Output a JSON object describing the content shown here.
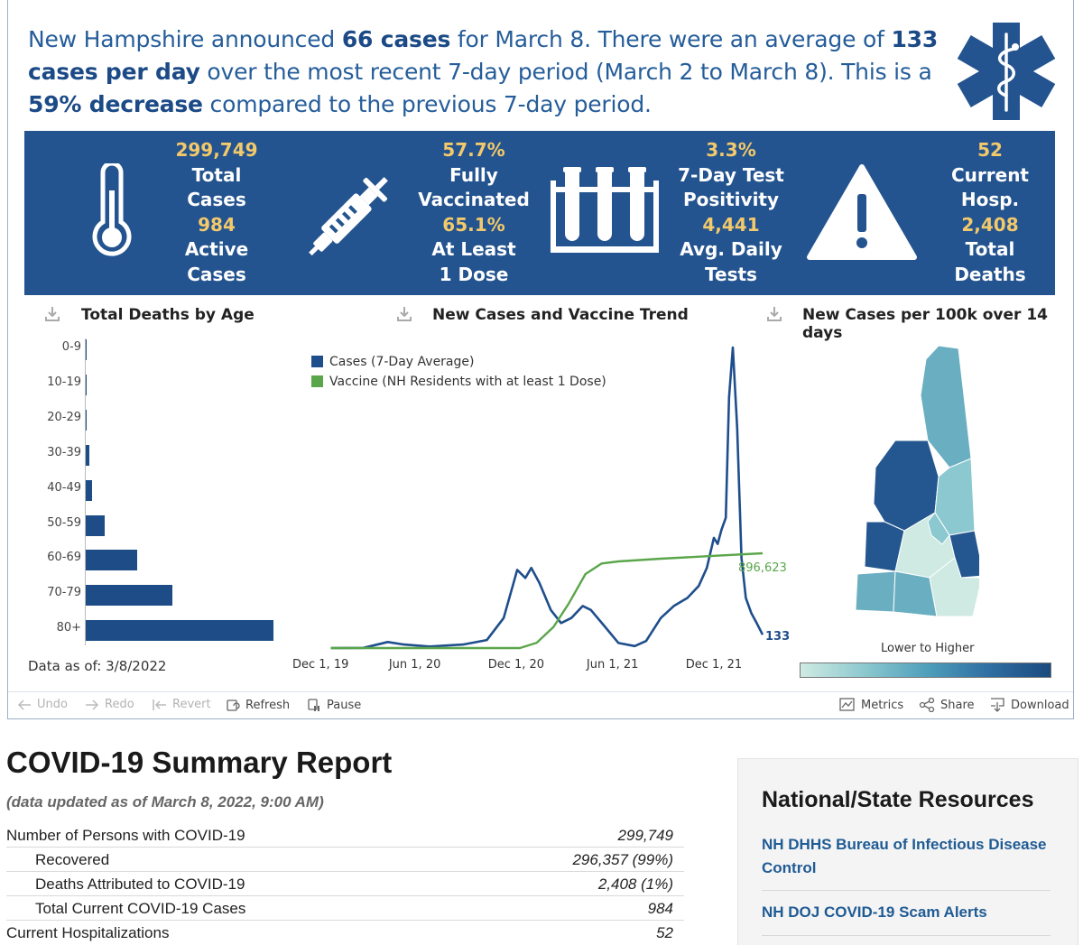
{
  "headline": {
    "p1": "New Hampshire announced ",
    "b1": "66 cases",
    "p2": " for March 8. There were an average of ",
    "b2": "133 cases per day",
    "p3": " over the most recent 7-day period (March 2 to March 8). This is a ",
    "b3": "59% decrease",
    "p4": " compared to the previous 7-day period."
  },
  "logo_icon": "star-of-life-icon",
  "kpis": [
    {
      "icon": "thermometer-icon",
      "v1": "299,749",
      "l1a": "Total",
      "l1b": "Cases",
      "v2": "984",
      "l2a": "Active",
      "l2b": "Cases"
    },
    {
      "icon": "syringe-icon",
      "v1": "57.7%",
      "l1a": "Fully",
      "l1b": "Vaccinated",
      "v2": "65.1%",
      "l2a": "At Least",
      "l2b": "1 Dose"
    },
    {
      "icon": "test-tubes-icon",
      "v1": "3.3%",
      "l1a": "7-Day Test",
      "l1b": "Positivity",
      "v2": "4,441",
      "l2a": "Avg. Daily",
      "l2b": "Tests"
    },
    {
      "icon": "warning-icon",
      "v1": "52",
      "l1a": "Current",
      "l1b": "Hosp.",
      "v2": "2,408",
      "l2a": "Total",
      "l2b": "Deaths"
    }
  ],
  "panels": {
    "deaths_by_age": "Total Deaths by Age",
    "trend": "New Cases and Vaccine Trend",
    "map": "New Cases per 100k over 14 days"
  },
  "chart_data": [
    {
      "type": "bar",
      "orientation": "horizontal",
      "title": "Total Deaths by Age",
      "categories": [
        "0-9",
        "10-19",
        "20-29",
        "30-39",
        "40-49",
        "50-59",
        "60-69",
        "70-79",
        "80+"
      ],
      "values": [
        1,
        2,
        4,
        22,
        45,
        130,
        347,
        578,
        1258
      ],
      "color": "#1e4c87"
    },
    {
      "type": "line",
      "title": "New Cases and Vaccine Trend",
      "x_ticks": [
        "Dec 1, 19",
        "Jun 1, 20",
        "Dec 1, 20",
        "Jun 1, 21",
        "Dec 1, 21"
      ],
      "series": [
        {
          "name": "Cases (7-Day Average)",
          "color": "#1f4e8c",
          "end_label": "133",
          "points": [
            [
              "2020-01-01",
              0
            ],
            [
              "2020-03-01",
              2
            ],
            [
              "2020-04-15",
              60
            ],
            [
              "2020-05-15",
              35
            ],
            [
              "2020-07-01",
              15
            ],
            [
              "2020-09-01",
              35
            ],
            [
              "2020-10-15",
              80
            ],
            [
              "2020-11-15",
              300
            ],
            [
              "2020-12-10",
              780
            ],
            [
              "2020-12-25",
              700
            ],
            [
              "2021-01-05",
              800
            ],
            [
              "2021-01-20",
              650
            ],
            [
              "2021-02-10",
              380
            ],
            [
              "2021-03-01",
              250
            ],
            [
              "2021-03-20",
              300
            ],
            [
              "2021-04-10",
              420
            ],
            [
              "2021-04-25",
              380
            ],
            [
              "2021-05-20",
              220
            ],
            [
              "2021-06-15",
              50
            ],
            [
              "2021-07-15",
              20
            ],
            [
              "2021-08-05",
              70
            ],
            [
              "2021-09-01",
              300
            ],
            [
              "2021-09-25",
              420
            ],
            [
              "2021-10-20",
              500
            ],
            [
              "2021-11-10",
              620
            ],
            [
              "2021-11-25",
              800
            ],
            [
              "2021-12-08",
              1100
            ],
            [
              "2021-12-15",
              1040
            ],
            [
              "2021-12-22",
              1180
            ],
            [
              "2021-12-30",
              1300
            ],
            [
              "2022-01-05",
              2500
            ],
            [
              "2022-01-12",
              3000
            ],
            [
              "2022-01-20",
              2200
            ],
            [
              "2022-01-28",
              900
            ],
            [
              "2022-02-05",
              500
            ],
            [
              "2022-02-15",
              350
            ],
            [
              "2022-02-25",
              250
            ],
            [
              "2022-03-08",
              133
            ]
          ]
        },
        {
          "name": "Vaccine (NH Residents with at least 1 Dose)",
          "color": "#5aa64a",
          "end_label": "896,623",
          "points": [
            [
              "2020-01-01",
              0
            ],
            [
              "2020-12-15",
              0
            ],
            [
              "2021-01-15",
              50000
            ],
            [
              "2021-02-15",
              200000
            ],
            [
              "2021-03-15",
              420000
            ],
            [
              "2021-04-15",
              700000
            ],
            [
              "2021-05-15",
              800000
            ],
            [
              "2021-06-15",
              820000
            ],
            [
              "2021-09-01",
              845000
            ],
            [
              "2021-12-01",
              870000
            ],
            [
              "2022-03-08",
              896623
            ]
          ]
        }
      ]
    },
    {
      "type": "choropleth",
      "title": "New Cases per 100k over 14 days",
      "scale_label": "Lower to Higher"
    }
  ],
  "data_as_of": "Data as of: 3/8/2022",
  "legend_swatch_colors": {
    "cases": "#1f4e8c",
    "vaccine": "#5aa64a"
  },
  "toolbar": {
    "undo": "Undo",
    "redo": "Redo",
    "revert": "Revert",
    "refresh": "Refresh",
    "pause": "Pause",
    "metrics": "Metrics",
    "share": "Share",
    "download": "Download"
  },
  "report": {
    "title": "COVID-19 Summary Report",
    "subtitle": "(data updated as of March 8, 2022, 9:00 AM)",
    "rows": [
      {
        "label": "Number of Persons with COVID-19",
        "value": "299,749"
      },
      {
        "label": "Recovered",
        "value": "296,357 (99%)"
      },
      {
        "label": "Deaths Attributed to COVID-19",
        "value": "2,408 (1%)"
      },
      {
        "label": "Total Current COVID-19 Cases",
        "value": "984"
      },
      {
        "label": "Current Hospitalizations",
        "value": "52"
      }
    ]
  },
  "resources": {
    "title": "National/State Resources",
    "links": [
      "NH DHHS Bureau of Infectious Disease Control",
      "NH DOJ COVID-19 Scam Alerts"
    ]
  }
}
